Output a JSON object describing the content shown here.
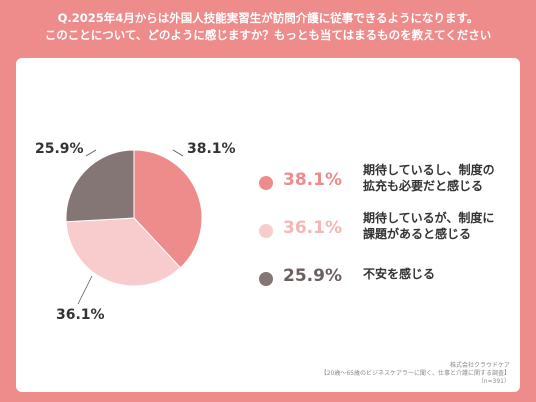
{
  "header": {
    "line1": "Q.2025年4月からは外国人技能実習生が訪問介護に従事できるようになります。",
    "line2": "このことについて、どのように感じますか？もっとも当てはまるものを教えてください"
  },
  "chart_data": {
    "type": "pie",
    "title": "",
    "slices": [
      {
        "label": "期待しているし、制度の拡充も必要だと感じる",
        "value": 38.1,
        "display": "38.1%",
        "color": "#ee8b8b"
      },
      {
        "label": "期待しているが、制度に課題があると感じる",
        "value": 36.1,
        "display": "36.1%",
        "color": "#f8cccc"
      },
      {
        "label": "不安を感じる",
        "value": 25.9,
        "display": "25.9%",
        "color": "#857676"
      }
    ]
  },
  "legend": [
    {
      "value": "38.1%",
      "text": "期待しているし、制度の\n拡充も必要だと感じる",
      "color": "#ee8b8b"
    },
    {
      "value": "36.1%",
      "text": "期待しているが、制度に\n課題があると感じる",
      "color": "#f8cccc"
    },
    {
      "value": "25.9%",
      "text": "不安を感じる",
      "color": "#857676"
    }
  ],
  "footer": {
    "company": "株式会社クラウドケア",
    "survey": "【20歳～65歳のビジネスケアラーに聞く、仕事と介護に関する調査】",
    "n": "（n=391）"
  }
}
